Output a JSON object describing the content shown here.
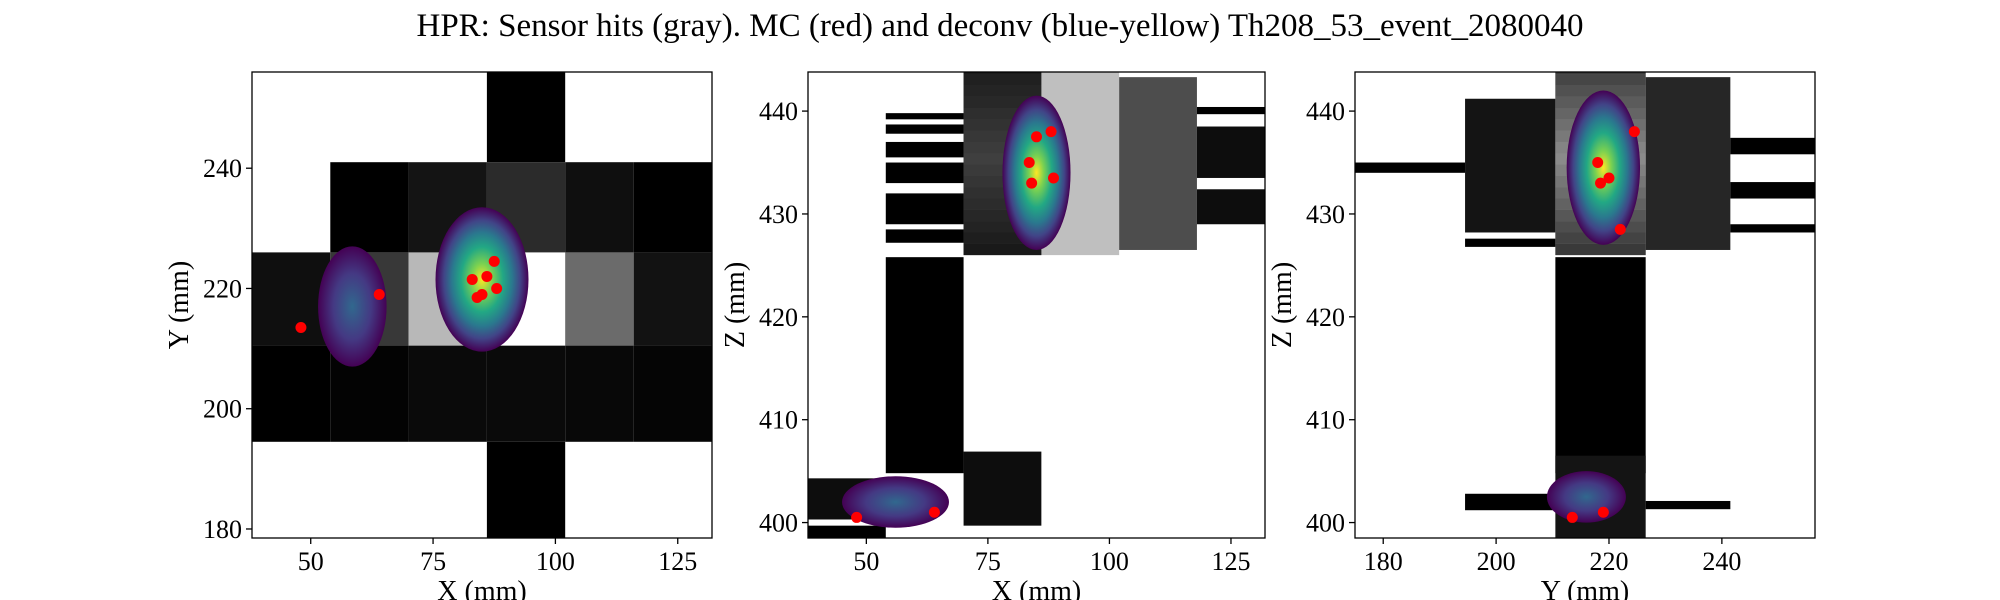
{
  "figure": {
    "title": "HPR: Sensor hits (gray). MC (red) and deconv (blue-yellow) Th208_53_event_2080040"
  },
  "chart_data": [
    {
      "type": "heatmap",
      "panel": "xy",
      "xlabel": "X (mm)",
      "ylabel": "Y (mm)",
      "xlim": [
        38,
        132
      ],
      "ylim": [
        178.5,
        256
      ],
      "xticks": [
        50,
        75,
        100,
        125
      ],
      "yticks": [
        180,
        200,
        220,
        240
      ],
      "sensor_pitch": 15.55,
      "sensor_hits": [
        {
          "x": 86,
          "y": 178.5,
          "w": 16,
          "h": 16,
          "v": 0.0
        },
        {
          "x": 86,
          "y": 194.5,
          "w": 16,
          "h": 16,
          "v": 0.04
        },
        {
          "x": 102,
          "y": 194.5,
          "w": 14,
          "h": 16,
          "v": 0.03
        },
        {
          "x": 70,
          "y": 194.5,
          "w": 16,
          "h": 16,
          "v": 0.04
        },
        {
          "x": 54,
          "y": 194.5,
          "w": 16,
          "h": 16,
          "v": 0.01
        },
        {
          "x": 38,
          "y": 194.5,
          "w": 16,
          "h": 16,
          "v": 0.0
        },
        {
          "x": 116,
          "y": 194.5,
          "w": 16,
          "h": 16,
          "v": 0.02
        },
        {
          "x": 38,
          "y": 210.5,
          "w": 16,
          "h": 15.5,
          "v": 0.06
        },
        {
          "x": 54,
          "y": 210.5,
          "w": 16,
          "h": 15.5,
          "v": 0.22
        },
        {
          "x": 70,
          "y": 210.5,
          "w": 16,
          "h": 15.5,
          "v": 0.72
        },
        {
          "x": 86,
          "y": 210.5,
          "w": 16,
          "h": 15.5,
          "v": 1.0
        },
        {
          "x": 102,
          "y": 210.5,
          "w": 14,
          "h": 15.5,
          "v": 0.42
        },
        {
          "x": 116,
          "y": 210.5,
          "w": 16,
          "h": 15.5,
          "v": 0.07
        },
        {
          "x": 54,
          "y": 226,
          "w": 16,
          "h": 15,
          "v": 0.0
        },
        {
          "x": 70,
          "y": 226,
          "w": 16,
          "h": 15,
          "v": 0.08
        },
        {
          "x": 86,
          "y": 226,
          "w": 16,
          "h": 15,
          "v": 0.17
        },
        {
          "x": 102,
          "y": 226,
          "w": 14,
          "h": 15,
          "v": 0.06
        },
        {
          "x": 116,
          "y": 226,
          "w": 16,
          "h": 15,
          "v": 0.0
        },
        {
          "x": 86,
          "y": 241,
          "w": 16,
          "h": 15,
          "v": 0.0
        }
      ],
      "deconv_blobs": [
        {
          "cx": 85,
          "cy": 221.5,
          "rx": 9.5,
          "ry": 12,
          "peak": 1.0
        },
        {
          "cx": 58.5,
          "cy": 217,
          "rx": 7,
          "ry": 10,
          "peak": 0.1
        }
      ],
      "mc_points": [
        {
          "x": 48,
          "y": 213.5
        },
        {
          "x": 64,
          "y": 219
        },
        {
          "x": 84,
          "y": 218.5
        },
        {
          "x": 85,
          "y": 219
        },
        {
          "x": 88,
          "y": 220
        },
        {
          "x": 87.5,
          "y": 224.5
        },
        {
          "x": 83,
          "y": 221.5
        },
        {
          "x": 86,
          "y": 222
        }
      ]
    },
    {
      "type": "heatmap",
      "panel": "xz",
      "xlabel": "X (mm)",
      "ylabel": "Z (mm)",
      "xlim": [
        38,
        132
      ],
      "ylim": [
        398.5,
        443.8
      ],
      "xticks": [
        50,
        75,
        100,
        125
      ],
      "yticks": [
        400,
        410,
        420,
        430,
        440
      ],
      "sensor_hits": [
        {
          "x": 54,
          "y": 404.8,
          "w": 16,
          "h": 21,
          "v": 0.0
        },
        {
          "x": 70,
          "y": 426,
          "w": 16,
          "h": 18,
          "v": 0.25
        },
        {
          "x": 86,
          "y": 426,
          "w": 16,
          "h": 18,
          "v": 0.75
        },
        {
          "x": 102,
          "y": 426.5,
          "w": 16,
          "h": 16.8,
          "v": 0.3
        },
        {
          "x": 118,
          "y": 429,
          "w": 14,
          "h": 3.4,
          "v": 0.05
        },
        {
          "x": 118,
          "y": 433.5,
          "w": 14,
          "h": 5,
          "v": 0.05
        },
        {
          "x": 118,
          "y": 439.7,
          "w": 14,
          "h": 0.7,
          "v": 0.0
        },
        {
          "x": 38,
          "y": 398.5,
          "w": 16,
          "h": 1.2,
          "v": 0.0
        },
        {
          "x": 38,
          "y": 400.3,
          "w": 16,
          "h": 4,
          "v": 0.05
        },
        {
          "x": 70,
          "y": 399.7,
          "w": 16,
          "h": 7.2,
          "v": 0.05
        }
      ],
      "sensor_strips": [
        {
          "x": 54,
          "y": 427.2,
          "w": 16,
          "h": 1.3
        },
        {
          "x": 54,
          "y": 429,
          "w": 16,
          "h": 3
        },
        {
          "x": 54,
          "y": 433,
          "w": 16,
          "h": 2
        },
        {
          "x": 54,
          "y": 435.5,
          "w": 16,
          "h": 1.5
        },
        {
          "x": 54,
          "y": 437.8,
          "w": 16,
          "h": 0.9
        },
        {
          "x": 54,
          "y": 439.2,
          "w": 16,
          "h": 0.6
        }
      ],
      "deconv_blobs": [
        {
          "cx": 85,
          "cy": 434,
          "rx": 7,
          "ry": 7.5,
          "peak": 1.0
        },
        {
          "cx": 56,
          "cy": 402,
          "rx": 11,
          "ry": 2.5,
          "peak": 0.35
        }
      ],
      "mc_points": [
        {
          "x": 48,
          "y": 400.5
        },
        {
          "x": 64,
          "y": 401
        },
        {
          "x": 88,
          "y": 438
        },
        {
          "x": 84,
          "y": 433
        },
        {
          "x": 88.5,
          "y": 433.5
        },
        {
          "x": 85,
          "y": 437.5
        },
        {
          "x": 83.5,
          "y": 435
        }
      ]
    },
    {
      "type": "heatmap",
      "panel": "yz",
      "xlabel": "Y (mm)",
      "ylabel": "Z (mm)",
      "xlim": [
        175,
        256.5
      ],
      "ylim": [
        398.5,
        443.8
      ],
      "xticks": [
        180,
        200,
        220,
        240
      ],
      "yticks": [
        400,
        410,
        420,
        430,
        440
      ],
      "sensor_hits": [
        {
          "x": 210.5,
          "y": 404.8,
          "w": 16,
          "h": 21,
          "v": 0.0
        },
        {
          "x": 210.5,
          "y": 426,
          "w": 16,
          "h": 18,
          "v": 0.55
        },
        {
          "x": 194.5,
          "y": 428.2,
          "w": 16,
          "h": 13,
          "v": 0.08
        },
        {
          "x": 226.5,
          "y": 426.5,
          "w": 15,
          "h": 16.8,
          "v": 0.15
        },
        {
          "x": 210.5,
          "y": 398.5,
          "w": 16,
          "h": 8,
          "v": 0.08
        },
        {
          "x": 194.5,
          "y": 401.2,
          "w": 16,
          "h": 1.6,
          "v": 0.0
        },
        {
          "x": 226.5,
          "y": 401.3,
          "w": 15,
          "h": 0.8,
          "v": 0.0
        }
      ],
      "sensor_strips": [
        {
          "x": 175,
          "y": 434,
          "w": 19.5,
          "h": 1
        },
        {
          "x": 194.5,
          "y": 426.8,
          "w": 16,
          "h": 0.8
        },
        {
          "x": 241.5,
          "y": 428.2,
          "w": 15,
          "h": 0.8
        },
        {
          "x": 241.5,
          "y": 431.5,
          "w": 15,
          "h": 1.6
        },
        {
          "x": 241.5,
          "y": 435.8,
          "w": 15,
          "h": 1.6
        }
      ],
      "deconv_blobs": [
        {
          "cx": 219,
          "cy": 434.5,
          "rx": 6.5,
          "ry": 7.5,
          "peak": 1.0
        },
        {
          "cx": 216,
          "cy": 402.5,
          "rx": 7,
          "ry": 2.5,
          "peak": 0.35
        }
      ],
      "mc_points": [
        {
          "x": 213.5,
          "y": 400.5
        },
        {
          "x": 219,
          "y": 401
        },
        {
          "x": 224.5,
          "y": 438
        },
        {
          "x": 218.5,
          "y": 433
        },
        {
          "x": 220,
          "y": 433.5
        },
        {
          "x": 222,
          "y": 428.5
        },
        {
          "x": 218,
          "y": 435
        }
      ]
    }
  ]
}
